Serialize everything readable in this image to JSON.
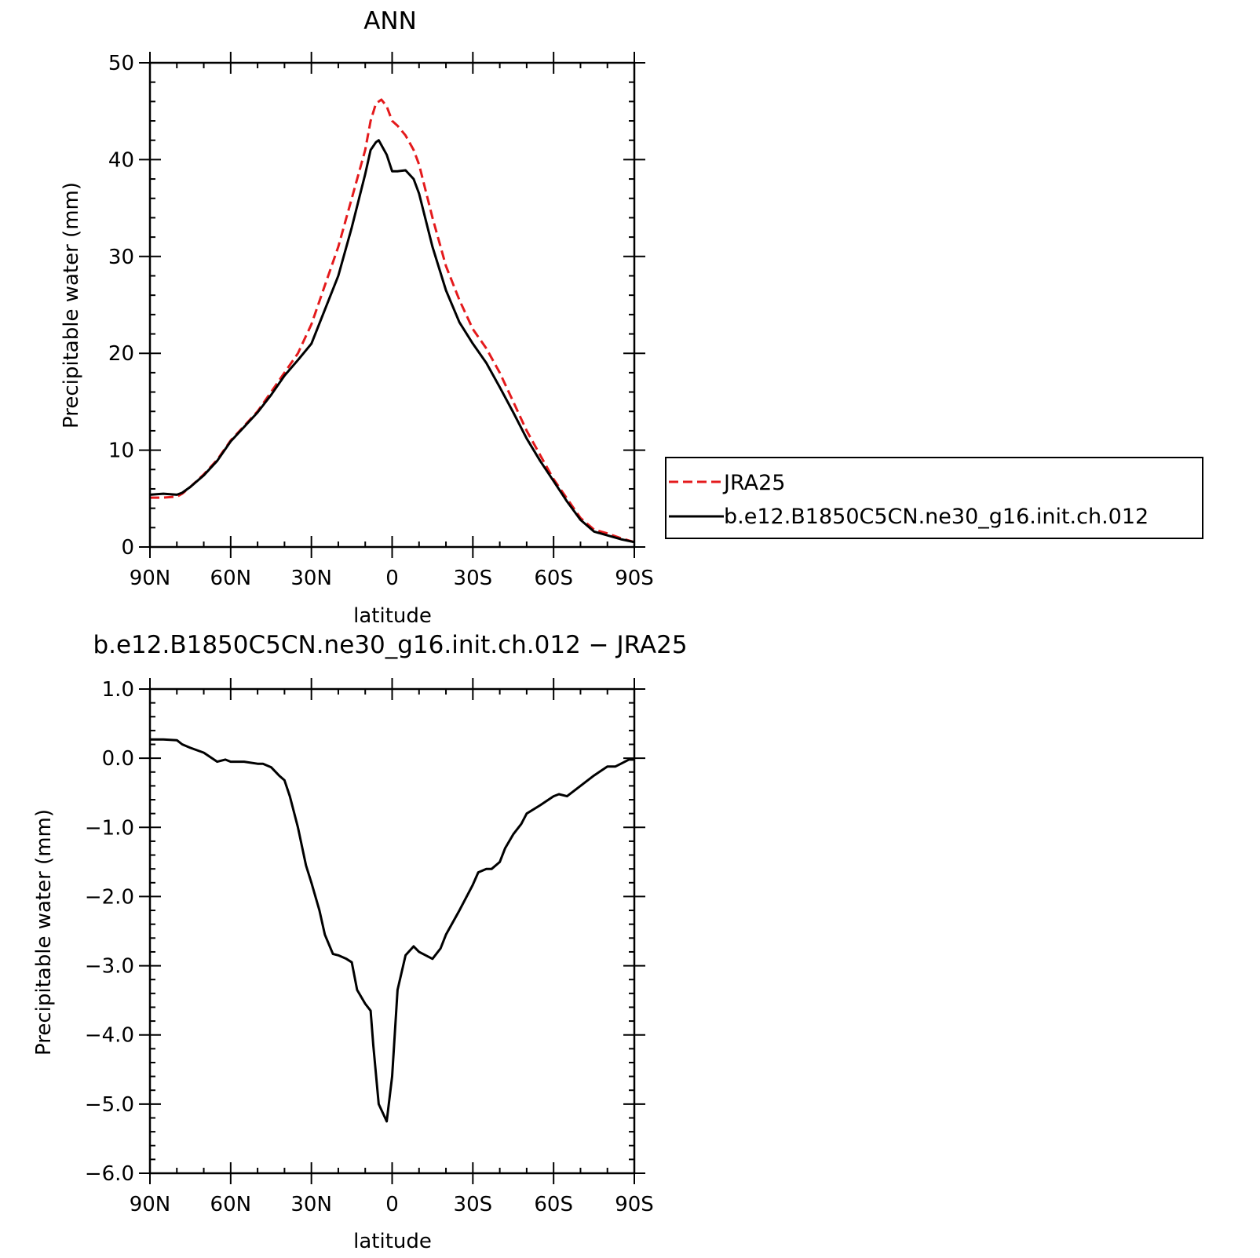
{
  "colors": {
    "jra25": "#e41a1c",
    "model": "#000000",
    "axes": "#000000",
    "background": "#ffffff"
  },
  "chart_data": [
    {
      "type": "line",
      "title": "ANN",
      "xlabel": "latitude",
      "ylabel": "Precipitable water (mm)",
      "xlim": [
        90,
        -90
      ],
      "ylim": [
        0,
        50
      ],
      "xticks": [
        {
          "value": 90,
          "label": "90N"
        },
        {
          "value": 60,
          "label": "60N"
        },
        {
          "value": 30,
          "label": "30N"
        },
        {
          "value": 0,
          "label": "0"
        },
        {
          "value": -30,
          "label": "30S"
        },
        {
          "value": -60,
          "label": "60S"
        },
        {
          "value": -90,
          "label": "90S"
        }
      ],
      "yticks": [
        {
          "value": 0,
          "label": "0"
        },
        {
          "value": 10,
          "label": "10"
        },
        {
          "value": 20,
          "label": "20"
        },
        {
          "value": 30,
          "label": "30"
        },
        {
          "value": 40,
          "label": "40"
        },
        {
          "value": 50,
          "label": "50"
        }
      ],
      "grid": false,
      "legend_position": "right",
      "series": [
        {
          "name": "JRA25",
          "color": "#e41a1c",
          "style": "dashed",
          "x": [
            90,
            85,
            80,
            78,
            75,
            70,
            65,
            60,
            55,
            50,
            45,
            40,
            35,
            30,
            25,
            20,
            15,
            10,
            8,
            6,
            5,
            4,
            2,
            0,
            -2,
            -5,
            -8,
            -10,
            -15,
            -20,
            -25,
            -30,
            -35,
            -40,
            -45,
            -50,
            -55,
            -60,
            -65,
            -70,
            -75,
            -80,
            -85,
            -90
          ],
          "values": [
            5.1,
            5.1,
            5.2,
            5.5,
            6.2,
            7.5,
            9.0,
            11.0,
            12.5,
            14.0,
            16.0,
            18.0,
            20.0,
            23.0,
            27.0,
            31.0,
            36.0,
            41.0,
            44.0,
            45.8,
            46.0,
            46.2,
            45.5,
            44.0,
            43.5,
            42.5,
            41.0,
            39.5,
            34.0,
            29.0,
            25.5,
            22.5,
            20.5,
            18.0,
            15.0,
            12.0,
            9.5,
            7.0,
            5.0,
            3.0,
            1.8,
            1.4,
            0.9,
            0.5
          ]
        },
        {
          "name": "b.e12.B1850C5CN.ne30_g16.init.ch.012",
          "color": "#000000",
          "style": "solid",
          "x": [
            90,
            85,
            80,
            78,
            75,
            70,
            65,
            60,
            55,
            50,
            45,
            40,
            35,
            30,
            25,
            20,
            15,
            10,
            8,
            6,
            5,
            4,
            2,
            0,
            -2,
            -5,
            -8,
            -10,
            -15,
            -20,
            -25,
            -30,
            -35,
            -40,
            -45,
            -50,
            -55,
            -60,
            -65,
            -70,
            -75,
            -80,
            -85,
            -90
          ],
          "values": [
            5.4,
            5.5,
            5.4,
            5.6,
            6.2,
            7.4,
            8.9,
            10.9,
            12.4,
            13.9,
            15.7,
            17.7,
            19.3,
            21.0,
            24.5,
            28.0,
            33.0,
            38.5,
            41.0,
            41.8,
            42.0,
            41.5,
            40.5,
            38.8,
            38.8,
            38.9,
            38.0,
            36.5,
            31.0,
            26.5,
            23.2,
            21.0,
            19.0,
            16.5,
            13.9,
            11.2,
            8.9,
            6.8,
            4.7,
            2.8,
            1.6,
            1.2,
            0.8,
            0.5
          ]
        }
      ],
      "legend": {
        "entries": [
          {
            "label": "JRA25",
            "color": "#e41a1c",
            "style": "dashed"
          },
          {
            "label": "b.e12.B1850C5CN.ne30_g16.init.ch.012",
            "color": "#000000",
            "style": "solid"
          }
        ]
      }
    },
    {
      "type": "line",
      "title": "b.e12.B1850C5CN.ne30_g16.init.ch.012 − JRA25",
      "xlabel": "latitude",
      "ylabel": "Precipitable water (mm)",
      "xlim": [
        90,
        -90
      ],
      "ylim": [
        -6,
        1
      ],
      "xticks": [
        {
          "value": 90,
          "label": "90N"
        },
        {
          "value": 60,
          "label": "60N"
        },
        {
          "value": 30,
          "label": "30N"
        },
        {
          "value": 0,
          "label": "0"
        },
        {
          "value": -30,
          "label": "30S"
        },
        {
          "value": -60,
          "label": "60S"
        },
        {
          "value": -90,
          "label": "90S"
        }
      ],
      "yticks": [
        {
          "value": 1,
          "label": "1.0"
        },
        {
          "value": 0,
          "label": "0.0"
        },
        {
          "value": -1,
          "label": "−1.0"
        },
        {
          "value": -2,
          "label": "−2.0"
        },
        {
          "value": -3,
          "label": "−3.0"
        },
        {
          "value": -4,
          "label": "−4.0"
        },
        {
          "value": -5,
          "label": "−5.0"
        },
        {
          "value": -6,
          "label": "−6.0"
        }
      ],
      "grid": false,
      "series": [
        {
          "color": "#000000",
          "style": "solid",
          "x": [
            90,
            85,
            80,
            78,
            75,
            70,
            65,
            62,
            60,
            58,
            55,
            50,
            48,
            45,
            42,
            40,
            38,
            35,
            32,
            30,
            27,
            25,
            22,
            20,
            17,
            15,
            13,
            10,
            8,
            7,
            5,
            2,
            0,
            -2,
            -5,
            -8,
            -10,
            -15,
            -18,
            -20,
            -25,
            -30,
            -32,
            -35,
            -37,
            -40,
            -42,
            -45,
            -48,
            -50,
            -55,
            -60,
            -62,
            -65,
            -70,
            -75,
            -80,
            -83,
            -85,
            -88,
            -90
          ],
          "values": [
            0.27,
            0.27,
            0.26,
            0.2,
            0.15,
            0.08,
            -0.05,
            -0.02,
            -0.05,
            -0.05,
            -0.05,
            -0.08,
            -0.08,
            -0.13,
            -0.25,
            -0.32,
            -0.55,
            -1.0,
            -1.55,
            -1.8,
            -2.2,
            -2.55,
            -2.83,
            -2.85,
            -2.9,
            -2.95,
            -3.35,
            -3.55,
            -3.65,
            -4.15,
            -5.0,
            -5.25,
            -4.6,
            -3.35,
            -2.85,
            -2.72,
            -2.8,
            -2.9,
            -2.75,
            -2.55,
            -2.2,
            -1.83,
            -1.65,
            -1.6,
            -1.6,
            -1.5,
            -1.3,
            -1.1,
            -0.95,
            -0.8,
            -0.68,
            -0.55,
            -0.52,
            -0.55,
            -0.4,
            -0.25,
            -0.12,
            -0.12,
            -0.08,
            -0.02,
            -0.02
          ]
        }
      ]
    }
  ]
}
